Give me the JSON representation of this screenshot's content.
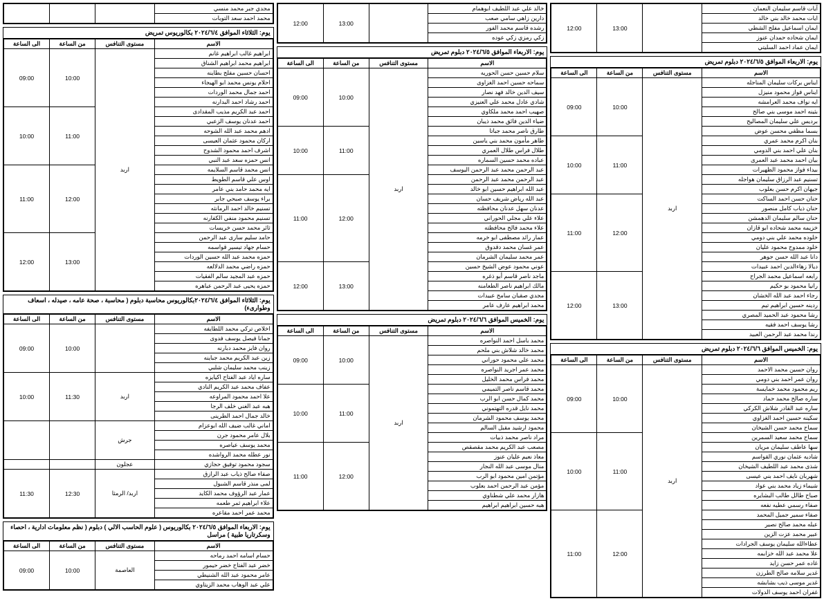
{
  "headers": {
    "name": "الاسم",
    "level": "مستوى التنافس",
    "from": "من الساعة",
    "to": "الى الساعة"
  },
  "columns": [
    {
      "blocks": [
        {
          "title": "",
          "groups": [
            {
              "level": "",
              "from": "13:00",
              "to": "12:00",
              "names": [
                "آيات قاسم سليمان النعمان",
                "ايات محمد خالد بني خالد",
                "ايمان اسماعيل مفلح الشطي",
                "ايمان شحاده حمدان عنوز",
                "ايمان عماد احمد السليتي"
              ]
            }
          ],
          "noHeader": true
        },
        {
          "title": "يوم:   الاربعاء الموافق ٢٠٢٤/٦/٥ دبلوم تمريض",
          "groups": [
            {
              "level": "",
              "from": "10:00",
              "to": "09:00",
              "names": [
                "ايناس بركات سليمان المناجله",
                "ايناس فواز محمود منيزل",
                "ايه نواف محمد العرامشه",
                "بثينه احمد موسى بني صالح",
                "برديس علي سليمان المصاليح",
                "بسما مظفي محسن عوض"
              ]
            },
            {
              "level": "",
              "from": "11:00",
              "to": "10:00",
              "names": [
                "بنان اكرم محمد عمري",
                "بنان علي احمد بني الدومي",
                "بيان احمد محمد عبد العمرى",
                "بيداء فواز محمود الظهيرات",
                "تسنيم عبد الرزاق سليمان هواجله",
                "جيهان اكرم حسن بعلوب"
              ]
            },
            {
              "level": "اربد",
              "from": "12:00",
              "to": "11:00",
              "names": [
                "حنان حسن احمد الساكت",
                "حنان ذياب كامل منصور",
                "حنان سالم سليمان الدهمشن",
                "خزيمه محمد شحاده ابو قازان",
                "خلوده محمد علي بني دومي",
                "خلود ممدوح محمود عليان",
                "دانا عبد الله حسن جوهر",
                "ديالا زهاءالدين احمد عبيدات"
              ]
            },
            {
              "level": "",
              "from": "13:00",
              "to": "12:00",
              "names": [
                "رابعه اسماعيل محمد الجراح",
                "رانيا محمود بو حكيم",
                "رجاء احمد عبد الله الخشان",
                "ردينه حسين ابراهيم تيم",
                "رشا محمود عبد الحميد المصري",
                "رشا يوسف احمد فقيه",
                "رندا محمد عبد الرحمن العبيد"
              ]
            }
          ]
        },
        {
          "title": "يوم:   الخميس  الموافق ٢٠٢٤/٦/٦ دبلوم تمريض",
          "groups": [
            {
              "level": "",
              "from": "10:00",
              "to": "09:00",
              "names": [
                "روان حسين محمد الاحمد",
                "روان عمر احمد بني دومي",
                "ريم محمود محمد خمايسة",
                "ساره صالح محمد حماد",
                "ساره عبد القادر شلاش الكركي",
                "سكينه حسين احمد الغزاوي",
                "سماح محمد حسن الشيخان"
              ]
            },
            {
              "level": "",
              "from": "11:00",
              "to": "10:00",
              "names": [
                "سماح محمد سعيد السمرين",
                "سها عاطف سليمان مريان",
                "شاديه عثمان نوري القواسم",
                "شذى محمد عبد اللطيف الشيخان",
                "شهربان نايف احمد بني عيسى",
                "شيماء زياد محمد بني عواد",
                "صباح طالل طالب البشايره",
                "صفاء رسمي عطيه نفعه"
              ]
            },
            {
              "level": "اربد",
              "from": "12:00",
              "to": "11:00",
              "names": [
                "صفاء سمير جميل المحمد",
                "عبله محمد صالح نصير",
                "عبير محمد عزت الزين",
                "عطاءالله سليمان يوسف الجرادات",
                "علا محمد عبد الله خزابمه",
                "غاده عمر حسن زايد",
                "غدير سلامه صالح الطرزن",
                "غدير موسى ذيب بشابشه",
                "غفران احمد يوسف الدولات"
              ]
            }
          ]
        }
      ]
    },
    {
      "blocks": [
        {
          "title": "",
          "groups": [
            {
              "level": "",
              "from": "13:00",
              "to": "12:00",
              "names": [
                "خالد علي عبد اللطيف ابوهمام",
                "دارين زاهي سامي صعب",
                "رشده قاسم محمد الفور",
                "زكي رمزي زكي عوده"
              ]
            }
          ],
          "noHeader": true
        },
        {
          "title": "يوم:   الاربعاء الموافق ٢٠٢٤/٦/٥ دبلوم تمريض",
          "groups": [
            {
              "level": "",
              "from": "10:00",
              "to": "09:00",
              "names": [
                "سلام حسين حسن الحوريه",
                "سماحه حسين احمد الغزاوى",
                "سيف الدين خالد فهد نصار",
                "شادي عادل محمد علي العنيزي",
                "صهيب احمد محمد ملكاوي",
                "ضياء الدين فائق محمد ذيبان"
              ]
            },
            {
              "level": "",
              "from": "11:00",
              "to": "10:00",
              "names": [
                "طارق ناصر محمد جباتا",
                "طاهر مأمون محمد بني ياسين",
                "طلال فراس طلال العمري",
                "عباده محمد حسين السماره",
                "عبد الرحمن محمد عبد الرحمن اليوسف"
              ]
            },
            {
              "level": "اربد",
              "from": "12:00",
              "to": "11:00",
              "names": [
                "عبد الرحمن محمد عبد الرحمن",
                "عبد الله ابراهيم حسين ابو خالد",
                "عبد الله رياض شريف حسان",
                "عدنان سهل عدنان محافظته",
                "علاء علي مجلي الحوراني",
                "علاء محمد فالح محافظته",
                "عمار رائد مصطفى ابو خرمه",
                "عمر غسان محمد دقدوق",
                "عمر محمد سليمان الشرمان"
              ]
            },
            {
              "level": "",
              "from": "13:00",
              "to": "12:00",
              "names": [
                "عوني محمود عوض الشيخ حسين",
                "ماجد ناصر قاسم أبو ذغره",
                "مالك ابراهيم ناصر الطعامنه",
                "مجدي صقبان سامح عبيدات",
                "محمد ابراهيم عارف عامر"
              ]
            }
          ]
        },
        {
          "title": "يوم:   الخميس الموافق ٢٠٢٤/٦/٦ دبلوم تمريض",
          "groups": [
            {
              "level": "",
              "from": "10:00",
              "to": "09:00",
              "names": [
                "محمد باسل احمد النواصره",
                "محمد خالد شلاش بني ملحم",
                "محمد علي محمود حوراني",
                "محمد عمر اجريد النواصره",
                "محمد فراس محمد الخليل"
              ]
            },
            {
              "level": "",
              "from": "11:00",
              "to": "10:00",
              "names": [
                "محمد قاسم ناصر التميمي",
                "محمد كمال حسن ابو الرب",
                "محمد نايل قدره التهتموني",
                "محمد يوسف محمود الشرمان",
                "محمود ارشيد مقبل السالم",
                "مراد ناصر محمد ذبيات"
              ]
            },
            {
              "level": "اربد",
              "from": "12:00",
              "to": "11:00",
              "names": [
                "مصعب عبد الكريم محمد مقصقص",
                "معاذ نعيم عليان عنوز",
                "منال موسى عبد الله النجار",
                "مؤتمن امين محمود ابو الرب",
                "مؤمن عبد الرحمن احمد بعلوب",
                "هازار محمد علي شطناوي",
                "هبه حسين ابراهيم  ابراهيم"
              ]
            }
          ]
        }
      ]
    },
    {
      "blocks": [
        {
          "title": "",
          "groups": [
            {
              "level": "",
              "from": "",
              "to": "",
              "names": [
                "مجدي جبر محمد منسي",
                "محمد احمد سعد التوبات"
              ]
            }
          ],
          "noHeader": true
        },
        {
          "title": "يوم:   الثلاثاء الموافق ٢٠٢٤/٦/٤ بكالوريوس تمريض",
          "groups": [
            {
              "level": "",
              "from": "10:00",
              "to": "09:00",
              "names": [
                "ابراهيم غالب ابراهيم غانم",
                "ابراهيم محمد ابراهيم الشناق",
                "احسان حسين مفلح بطاينه",
                "احلام يونس محمد ابو  الهيجاء",
                "احمد جمال محمد الوردات",
                "احمد رشاد احمد البدارنه"
              ]
            },
            {
              "level": "",
              "from": "11:00",
              "to": "10:00",
              "names": [
                "احمد عبد الكريم مذيب المقدادى",
                "احمد عدنان يوسف الزعبي",
                "ادهم محمد عبد الله الشوحه",
                "اركان محمود عثمان العيسى",
                "اشرف احمد محمود الشدوح",
                "انس حمزه سعد عبد النبي"
              ]
            },
            {
              "level": "اربد",
              "from": "12:00",
              "to": "11:00",
              "names": [
                "انس محمد قاسم السلايمه",
                "اوس علي قاسم الطويط",
                "ايه محمد حامد بني عامر",
                "براء يوسف صبحي جابر",
                "تسنيم خالد احمد الرمانثه",
                "تسنيم محمود منفي الكفارنه",
                "ثائر محمد حسن خريسات"
              ]
            },
            {
              "level": "",
              "from": "13:00",
              "to": "12:00",
              "names": [
                "حامد سليم سارى عبد الرحمن",
                "حسام جهاد تيسير قواسمه",
                "حمزه محمد عبد الله حسين الوردات",
                "حمزه راضي محمد الدلالعه",
                "حمزه عبد المجيد سالم الفقيات",
                "حمزه يحيى عبد الرحمن عباهره"
              ]
            }
          ]
        },
        {
          "title": "يوم:   الثلاثاء الموافق ٢٠٢٤/٦/٤بكالوريوس محاسبة  دبلوم ( محاسبة ، صحة عامه ، صيدله ، اسعاف وطوارىء)",
          "groups": [
            {
              "level": "",
              "from": "10:00",
              "to": "09:00",
              "names": [
                "اخلاص تركي محمد اللطايفه",
                "جمانا فيصل يوسف فدوى",
                "روان فايز محمد دبارنه",
                "زين عبد الكريم محمد جباينه",
                "زينب محمد سليمان شلبي"
              ]
            },
            {
              "level": "اربد",
              "from": "11:30",
              "to": "10:00",
              "names": [
                "ساره اياد عبد الفتاح اكيايزه",
                "عفاف محمد عبد الكريم النادي",
                "علا احمد محمود المراوعه",
                "هبه عبد الغني خلف الرجا",
                "خالد جمال احمد الطرينى"
              ]
            },
            {
              "level": "جرش",
              "from": "",
              "to": "",
              "names": [
                "اماني غالب ضيف الله ابوعزام",
                "بلال عامر محمود جرن",
                "محمد يوسف عياصره",
                "نور عطله محمد الرواشده"
              ]
            },
            {
              "level": "عجلون",
              "from": "",
              "to": "",
              "names": [
                "سجود محمود توفيق حجازي"
              ]
            },
            {
              "level": "اربد/ الرمثا",
              "from": "12:30",
              "to": "11:30",
              "names": [
                "صفاء صالح ذياب عبد الرازق",
                "لمى منذر قاسم الشبول",
                "عمار عبد الرؤوف محمد الكايد",
                "علاء ابراهيم ثمر طعمه",
                "محمد عمر احمد مقاعره"
              ]
            }
          ]
        },
        {
          "title": "يوم:   الاربعاء الموافق ٢٠٢٤/٦/٥  بكالوريوس ( علوم الحاسب الالي )  دبلوم ( نظم معلومات ادارية ، احصاء وسكرتاريا طبية ) مراسل",
          "groups": [
            {
              "level": "العاصمة",
              "from": "10:00",
              "to": "09:00",
              "names": [
                "حسام اسامه احمد رماحه",
                "خضر عبد الفتاح خضر حيمور",
                "عامر محمود عبد الله الشنيطي",
                "علي عبد الوهاب محمد الزيتاوي"
              ]
            }
          ]
        }
      ]
    }
  ]
}
